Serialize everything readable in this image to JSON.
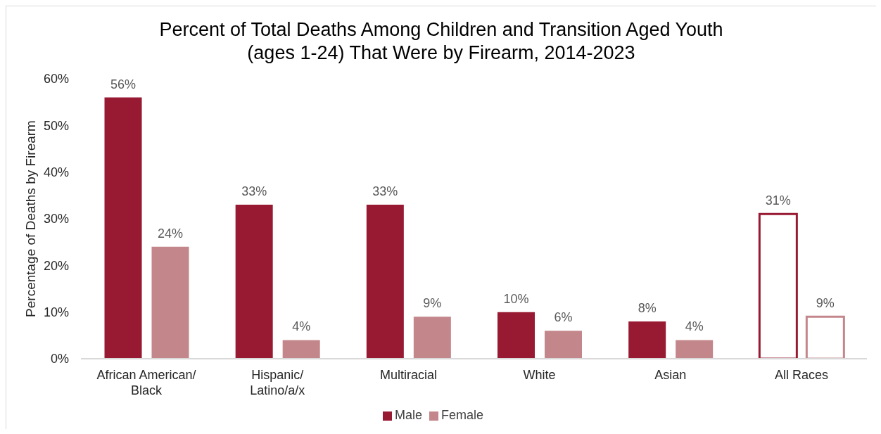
{
  "chart_data": {
    "type": "bar",
    "title": "Percent of Total Deaths Among Children and Transition Aged Youth (ages 1-24) That Were by Firearm, 2014-2023",
    "ylabel": "Percentage of Deaths by Firearm",
    "categories": [
      "African American/ Black",
      "Hispanic/ Latino/a/x",
      "Multiracial",
      "White",
      "Asian",
      "All Races"
    ],
    "series": [
      {
        "name": "Male",
        "color": "#981932",
        "colors": [
          "#981932",
          "#981932",
          "#981932",
          "#981932",
          "#981932",
          "#ffffff"
        ],
        "values": [
          56,
          33,
          33,
          10,
          8,
          31
        ],
        "value_labels": [
          "56%",
          "33%",
          "33%",
          "10%",
          "8%",
          "31%"
        ]
      },
      {
        "name": "Female",
        "color": "#c3868b",
        "colors": [
          "#c3868b",
          "#c3868b",
          "#c3868b",
          "#c3868b",
          "#c3868b",
          "#ffffff"
        ],
        "values": [
          24,
          4,
          9,
          6,
          4,
          9
        ],
        "value_labels": [
          "24%",
          "4%",
          "9%",
          "6%",
          "4%",
          "9%"
        ]
      }
    ],
    "ylim": [
      0,
      60
    ],
    "yticks": [
      {
        "value": 0,
        "label": "0%"
      },
      {
        "value": 10,
        "label": "10%"
      },
      {
        "value": 20,
        "label": "20%"
      },
      {
        "value": 30,
        "label": "30%"
      },
      {
        "value": 40,
        "label": "40%"
      },
      {
        "value": 50,
        "label": "50%"
      },
      {
        "value": 60,
        "label": "60%"
      }
    ],
    "legend": "bottom"
  }
}
